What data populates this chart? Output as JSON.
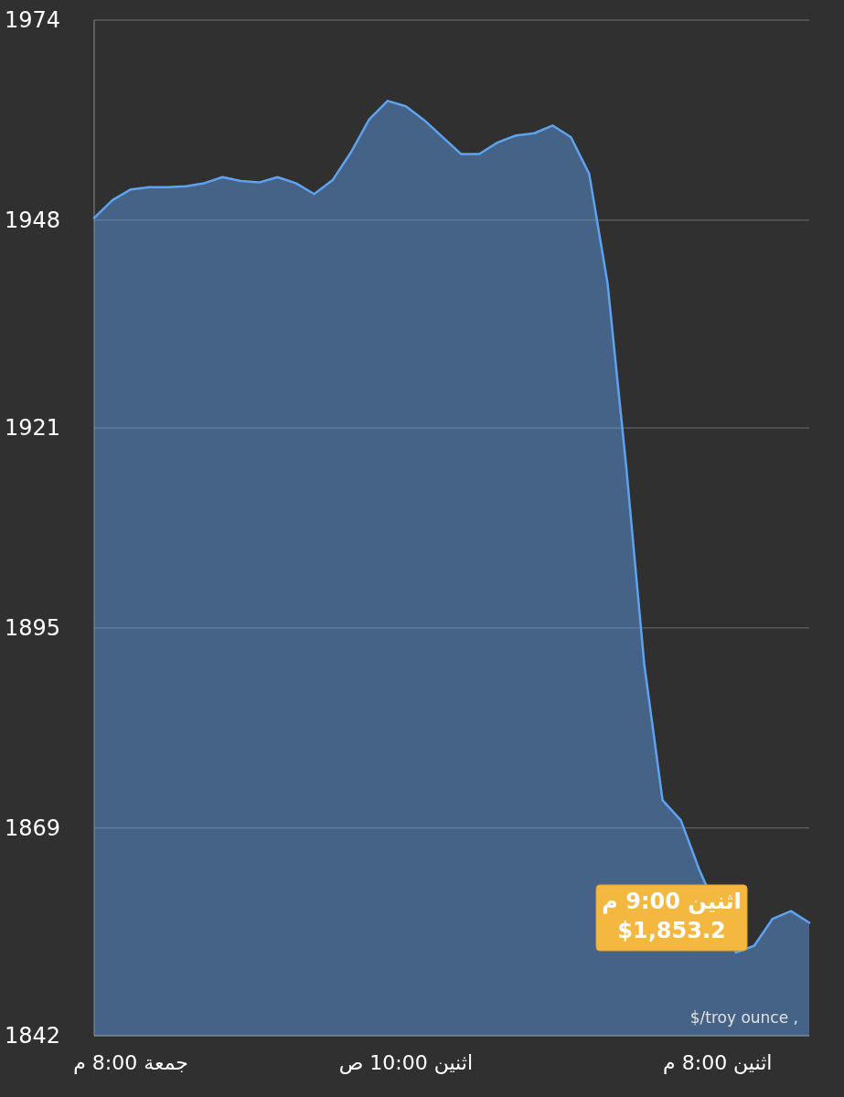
{
  "chart_data": {
    "type": "area",
    "categories": [
      null,
      null,
      "جمعة 8:00 م",
      null,
      null,
      null,
      null,
      null,
      null,
      null,
      null,
      null,
      null,
      null,
      null,
      null,
      null,
      "اثنين 10:00 ص",
      null,
      null,
      null,
      null,
      null,
      null,
      null,
      null,
      null,
      null,
      null,
      null,
      null,
      null,
      null,
      null,
      "اثنين 8:00 م",
      null,
      null,
      null,
      null,
      null
    ],
    "series": [
      {
        "color": "#5ea2f0",
        "values": [
          1948.3,
          1950.6,
          1952.0,
          1952.3,
          1952.3,
          1952.4,
          1952.8,
          1953.6,
          1953.1,
          1952.9,
          1953.6,
          1952.8,
          1951.4,
          1953.2,
          1956.8,
          1961.1,
          1963.5,
          1962.8,
          1961.0,
          1958.8,
          1956.6,
          1956.6,
          1958.1,
          1959.0,
          1959.3,
          1960.3,
          1958.8,
          1954.0,
          1939.8,
          1916.4,
          1890.3,
          1872.6,
          1870.0,
          1863.6,
          null,
          1852.8,
          1853.7,
          1857.2,
          1858.2,
          1856.7
        ]
      }
    ],
    "ylim": [
      1842,
      1974
    ],
    "yticks": [
      1842,
      1869,
      1895,
      1921,
      1948,
      1974
    ],
    "grid": "y",
    "annotations": [
      "اثنين 9:00 م\n$1,853.2",
      "$/troy ounce ,"
    ]
  }
}
